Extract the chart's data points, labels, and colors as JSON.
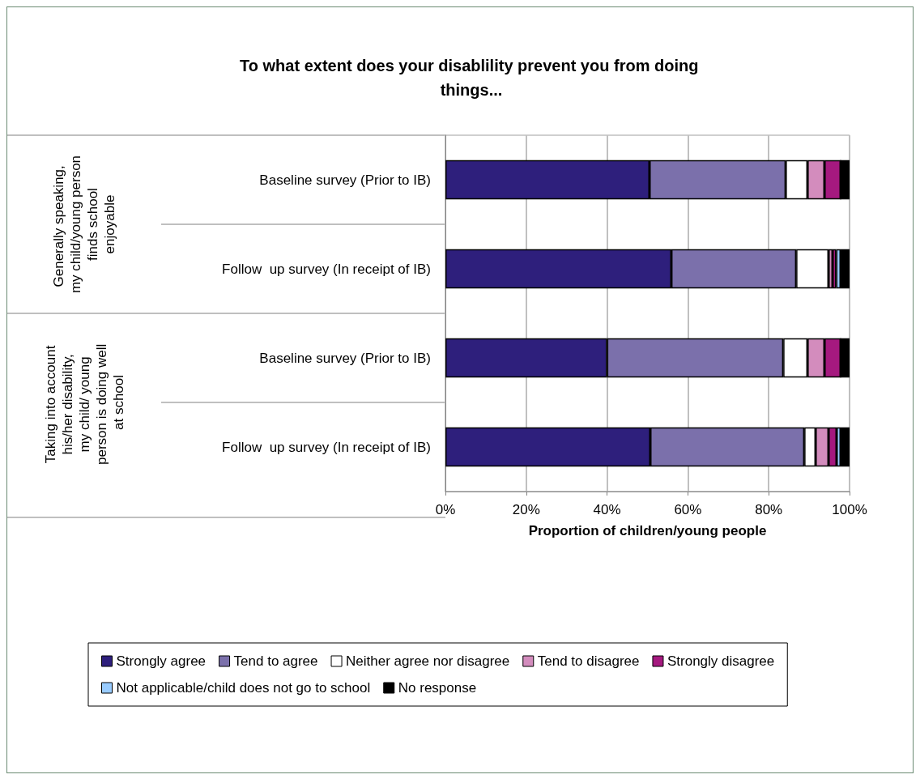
{
  "chart_data": {
    "type": "bar",
    "orientation": "horizontal",
    "stacked": true,
    "title": "To what extent does your disablility prevent you from doing things...",
    "xlabel": "Proportion of children/young people",
    "categories": [
      "Baseline survey (Prior to IB)",
      "Follow  up survey (In receipt of IB)",
      "Baseline survey (Prior to IB)",
      "Follow  up survey (In receipt of IB)"
    ],
    "annotations": [
      "Generally speaking, my child/young person finds school enjoyable",
      "Taking into account his/her disability, my child/ young person is doing well at school"
    ],
    "series": [
      {
        "name": "Strongly agree",
        "color": "#2e1f7c",
        "values": [
          50.5,
          55.9,
          40,
          50.7
        ]
      },
      {
        "name": "Tend to agree",
        "color": "#7b70ab",
        "values": [
          33.7,
          30.9,
          43.6,
          38.1
        ]
      },
      {
        "name": "Neither agree nor disagree",
        "color": "#ffffff",
        "values": [
          5.4,
          8.0,
          6.0,
          2.8
        ]
      },
      {
        "name": "Tend to disagree",
        "color": "#d38cbd",
        "values": [
          4.2,
          1.0,
          4.2,
          3.2
        ]
      },
      {
        "name": "Strongly disagree",
        "color": "#a5197f",
        "values": [
          4.0,
          0.9,
          4.0,
          2.0
        ]
      },
      {
        "name": "Not applicable/child does not go to school",
        "color": "#99ccff",
        "values": [
          0,
          1.1,
          0,
          1.0
        ]
      },
      {
        "name": "No response",
        "color": "#000000",
        "values": [
          2.2,
          2.2,
          2.2,
          2.2
        ]
      }
    ],
    "xlim": [
      0,
      100
    ],
    "xticks": [
      {
        "value": 0,
        "label": "0%"
      },
      {
        "value": 20,
        "label": "20%"
      },
      {
        "value": 40,
        "label": "40%"
      },
      {
        "value": 60,
        "label": "60%"
      },
      {
        "value": 80,
        "label": "80%"
      },
      {
        "value": 100,
        "label": "100%"
      }
    ],
    "grid": "x",
    "legend": "bottom"
  }
}
